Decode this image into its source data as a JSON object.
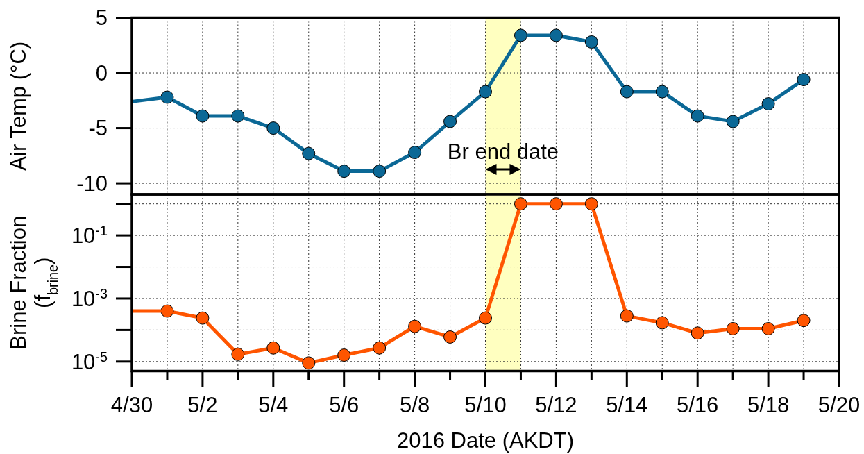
{
  "chart_data": [
    {
      "type": "line",
      "ylabel": "Air Temp (°C)",
      "tick_labels": "y",
      "grid": true,
      "marker": "circle",
      "x": [
        "2016-05-01",
        "2016-05-02",
        "2016-05-03",
        "2016-05-04",
        "2016-05-05",
        "2016-05-06",
        "2016-05-07",
        "2016-05-08",
        "2016-05-09",
        "2016-05-10",
        "2016-05-11",
        "2016-05-12",
        "2016-05-13",
        "2016-05-14",
        "2016-05-15",
        "2016-05-16",
        "2016-05-17",
        "2016-05-18",
        "2016-05-19"
      ],
      "series": [
        {
          "color": "#0b6896",
          "values": [
            -2.2,
            -3.9,
            -3.9,
            -5.0,
            -7.3,
            -8.9,
            -8.9,
            -7.2,
            -4.4,
            -1.7,
            3.4,
            3.4,
            2.8,
            -1.7,
            -1.7,
            -3.9,
            -4.4,
            -2.8,
            -0.6
          ]
        },
        {
          "color": "#0b6896",
          "marker": "none",
          "x": [
            "2016-04-30",
            "2016-05-01"
          ],
          "values": [
            -2.6,
            -2.2
          ]
        }
      ],
      "xlim": [
        "2016-04-30",
        "2016-05-20"
      ],
      "xticks": [
        {
          "value": "2016-04-30",
          "label": null
        },
        {
          "value": "2016-05-01",
          "label": null
        },
        {
          "value": "2016-05-02",
          "label": null
        },
        {
          "value": "2016-05-03",
          "label": null
        },
        {
          "value": "2016-05-04",
          "label": null
        },
        {
          "value": "2016-05-05",
          "label": null
        },
        {
          "value": "2016-05-06",
          "label": null
        },
        {
          "value": "2016-05-07",
          "label": null
        },
        {
          "value": "2016-05-08",
          "label": null
        },
        {
          "value": "2016-05-09",
          "label": null
        },
        {
          "value": "2016-05-10",
          "label": null
        },
        {
          "value": "2016-05-11",
          "label": null
        },
        {
          "value": "2016-05-12",
          "label": null
        },
        {
          "value": "2016-05-13",
          "label": null
        },
        {
          "value": "2016-05-14",
          "label": null
        },
        {
          "value": "2016-05-15",
          "label": null
        },
        {
          "value": "2016-05-16",
          "label": null
        },
        {
          "value": "2016-05-17",
          "label": null
        },
        {
          "value": "2016-05-18",
          "label": null
        },
        {
          "value": "2016-05-19",
          "label": null
        },
        {
          "value": "2016-05-20",
          "label": null
        }
      ],
      "ylim": [
        -11,
        5
      ],
      "yticks": [
        -10,
        -5,
        0,
        5
      ],
      "bands": [
        {
          "axis": "x",
          "from": "2016-05-10",
          "to": "2016-05-11",
          "label": "Br end date",
          "color": "#ffffc0"
        }
      ]
    },
    {
      "type": "line",
      "ylabel": "Brine Fraction\n(f$_{brine}$)",
      "xlabel": "2016 Date (AKDT)",
      "log": "y",
      "grid": true,
      "marker": "circle",
      "x": [
        "2016-05-01",
        "2016-05-02",
        "2016-05-03",
        "2016-05-04",
        "2016-05-05",
        "2016-05-06",
        "2016-05-07",
        "2016-05-08",
        "2016-05-09",
        "2016-05-10",
        "2016-05-11",
        "2016-05-12",
        "2016-05-13",
        "2016-05-14",
        "2016-05-15",
        "2016-05-16",
        "2016-05-17",
        "2016-05-18",
        "2016-05-19"
      ],
      "series": [
        {
          "color": "#ff5500",
          "values": [
            0.0004,
            0.00024,
            1.7e-05,
            2.7e-05,
            9e-06,
            1.6e-05,
            2.7e-05,
            0.00013,
            6e-05,
            0.00024,
            1,
            1,
            1,
            0.00028,
            0.00017,
            8e-05,
            0.00011,
            0.00011,
            0.0002
          ]
        },
        {
          "color": "#ff5500",
          "marker": "none",
          "x": [
            "2016-04-30",
            "2016-05-01"
          ],
          "values": [
            0.0004,
            0.0004
          ]
        }
      ],
      "xlim": [
        "2016-04-30",
        "2016-05-20"
      ],
      "xticks": [
        {
          "value": "2016-04-30",
          "label": "4/30"
        },
        {
          "value": "2016-05-01",
          "label": null
        },
        {
          "value": "2016-05-02",
          "label": "5/2"
        },
        {
          "value": "2016-05-03",
          "label": null
        },
        {
          "value": "2016-05-04",
          "label": "5/4"
        },
        {
          "value": "2016-05-05",
          "label": null
        },
        {
          "value": "2016-05-06",
          "label": "5/6"
        },
        {
          "value": "2016-05-07",
          "label": null
        },
        {
          "value": "2016-05-08",
          "label": "5/8"
        },
        {
          "value": "2016-05-09",
          "label": null
        },
        {
          "value": "2016-05-10",
          "label": "5/10"
        },
        {
          "value": "2016-05-11",
          "label": null
        },
        {
          "value": "2016-05-12",
          "label": "5/12"
        },
        {
          "value": "2016-05-13",
          "label": null
        },
        {
          "value": "2016-05-14",
          "label": "5/14"
        },
        {
          "value": "2016-05-15",
          "label": null
        },
        {
          "value": "2016-05-16",
          "label": "5/16"
        },
        {
          "value": "2016-05-17",
          "label": null
        },
        {
          "value": "2016-05-18",
          "label": "5/18"
        },
        {
          "value": "2016-05-19",
          "label": null
        },
        {
          "value": "2016-05-20",
          "label": "5/20"
        }
      ],
      "ylim": [
        5e-06,
        2
      ],
      "yticks": [
        {
          "value": 1e-05,
          "label": "10$^{-5}$"
        },
        {
          "value": 0.0001,
          "label": null
        },
        {
          "value": 0.001,
          "label": "10$^{-3}$"
        },
        {
          "value": 0.01,
          "label": null
        },
        {
          "value": 0.1,
          "label": "10$^{-1}$"
        },
        {
          "value": 1,
          "label": null
        }
      ],
      "bands": [
        {
          "axis": "x",
          "from": "2016-05-10",
          "to": "2016-05-11",
          "color": "#ffffc0"
        }
      ]
    }
  ]
}
